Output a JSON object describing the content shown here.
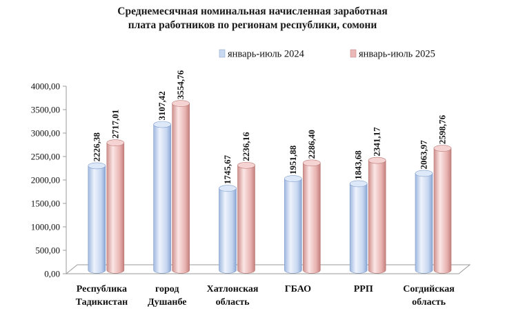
{
  "chart_data": {
    "type": "bar",
    "title_lines": [
      "Среднемесячная номинальная начисленная заработная",
      "плата работников по регионам республики, сомони"
    ],
    "categories": [
      [
        "Республика",
        "Тадикистан"
      ],
      [
        "город",
        "Душанбе"
      ],
      [
        "Хатлонская",
        "область"
      ],
      [
        "ГБАО"
      ],
      [
        "РРП"
      ],
      [
        "Согдийская",
        "область"
      ]
    ],
    "series": [
      {
        "name": "январь-июль 2024",
        "values": [
          2226.38,
          3107.42,
          1745.67,
          1951.88,
          1843.68,
          2063.97
        ],
        "labels": [
          "2226,38",
          "3107,42",
          "1745,67",
          "1951,88",
          "1843,68",
          "2063,97"
        ],
        "color": "#c9d9f2"
      },
      {
        "name": "январь-июль 2025",
        "values": [
          2717.01,
          3554.76,
          2236.16,
          2286.4,
          2341.17,
          2598.76
        ],
        "labels": [
          "2717,01",
          "3554,76",
          "2236,16",
          "2286,40",
          "2341,17",
          "2598,76"
        ],
        "color": "#eab9b7"
      }
    ],
    "y_ticks": [
      0,
      500,
      1000,
      1500,
      2000,
      2500,
      3000,
      3500,
      4000
    ],
    "y_tick_labels": [
      "0,00",
      "500,00",
      "1000,00",
      "1500,00",
      "2000,00",
      "2500,00",
      "3000,00",
      "3500,00",
      "4000,00"
    ],
    "ylim": [
      0,
      4000
    ],
    "legend_position": "top-right",
    "grid": false,
    "style": "3d-cylinder"
  }
}
